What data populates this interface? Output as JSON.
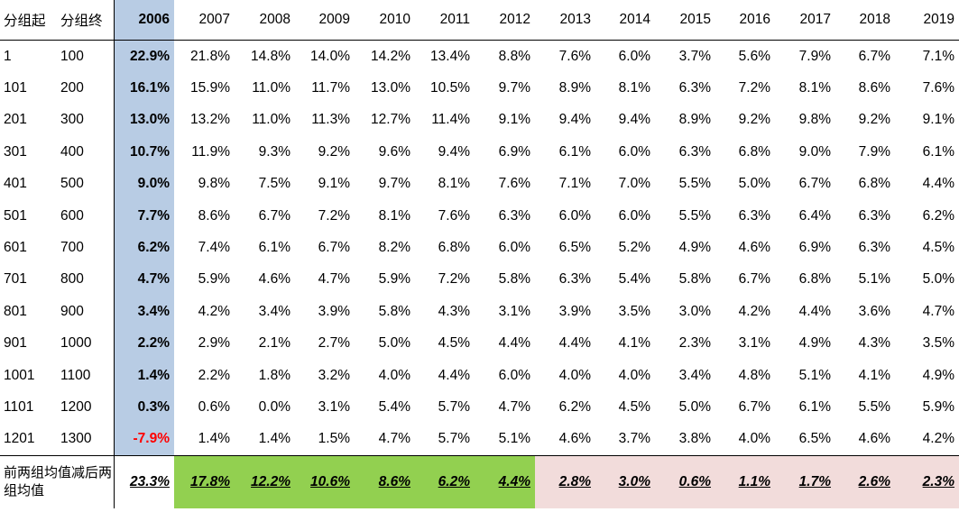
{
  "header": {
    "group_start_label": "分组起",
    "group_end_label": "分组终",
    "years": [
      "2006",
      "2007",
      "2008",
      "2009",
      "2010",
      "2011",
      "2012",
      "2013",
      "2014",
      "2015",
      "2016",
      "2017",
      "2018",
      "2019"
    ]
  },
  "rows": [
    {
      "start": "1",
      "end": "100",
      "values": [
        "22.9%",
        "21.8%",
        "14.8%",
        "14.0%",
        "14.2%",
        "13.4%",
        "8.8%",
        "7.6%",
        "6.0%",
        "3.7%",
        "5.6%",
        "7.9%",
        "6.7%",
        "7.1%"
      ]
    },
    {
      "start": "101",
      "end": "200",
      "values": [
        "16.1%",
        "15.9%",
        "11.0%",
        "11.7%",
        "13.0%",
        "10.5%",
        "9.7%",
        "8.9%",
        "8.1%",
        "6.3%",
        "7.2%",
        "8.1%",
        "8.6%",
        "7.6%"
      ]
    },
    {
      "start": "201",
      "end": "300",
      "values": [
        "13.0%",
        "13.2%",
        "11.0%",
        "11.3%",
        "12.7%",
        "11.4%",
        "9.1%",
        "9.4%",
        "9.4%",
        "8.9%",
        "9.2%",
        "9.8%",
        "9.2%",
        "9.1%"
      ]
    },
    {
      "start": "301",
      "end": "400",
      "values": [
        "10.7%",
        "11.9%",
        "9.3%",
        "9.2%",
        "9.6%",
        "9.4%",
        "6.9%",
        "6.1%",
        "6.0%",
        "6.3%",
        "6.8%",
        "9.0%",
        "7.9%",
        "6.1%"
      ]
    },
    {
      "start": "401",
      "end": "500",
      "values": [
        "9.0%",
        "9.8%",
        "7.5%",
        "9.1%",
        "9.7%",
        "8.1%",
        "7.6%",
        "7.1%",
        "7.0%",
        "5.5%",
        "5.0%",
        "6.7%",
        "6.8%",
        "4.4%"
      ]
    },
    {
      "start": "501",
      "end": "600",
      "values": [
        "7.7%",
        "8.6%",
        "6.7%",
        "7.2%",
        "8.1%",
        "7.6%",
        "6.3%",
        "6.0%",
        "6.0%",
        "5.5%",
        "6.3%",
        "6.4%",
        "6.3%",
        "6.2%"
      ]
    },
    {
      "start": "601",
      "end": "700",
      "values": [
        "6.2%",
        "7.4%",
        "6.1%",
        "6.7%",
        "8.2%",
        "6.8%",
        "6.0%",
        "6.5%",
        "5.2%",
        "4.9%",
        "4.6%",
        "6.9%",
        "6.3%",
        "4.5%"
      ]
    },
    {
      "start": "701",
      "end": "800",
      "values": [
        "4.7%",
        "5.9%",
        "4.6%",
        "4.7%",
        "5.9%",
        "7.2%",
        "5.8%",
        "6.3%",
        "5.4%",
        "5.8%",
        "6.7%",
        "6.8%",
        "5.1%",
        "5.0%"
      ]
    },
    {
      "start": "801",
      "end": "900",
      "values": [
        "3.4%",
        "4.2%",
        "3.4%",
        "3.9%",
        "5.8%",
        "4.3%",
        "3.1%",
        "3.9%",
        "3.5%",
        "3.0%",
        "4.2%",
        "4.4%",
        "3.6%",
        "4.7%"
      ]
    },
    {
      "start": "901",
      "end": "1000",
      "values": [
        "2.2%",
        "2.9%",
        "2.1%",
        "2.7%",
        "5.0%",
        "4.5%",
        "4.4%",
        "4.4%",
        "4.1%",
        "2.3%",
        "3.1%",
        "4.9%",
        "4.3%",
        "3.5%"
      ]
    },
    {
      "start": "1001",
      "end": "1100",
      "values": [
        "1.4%",
        "2.2%",
        "1.8%",
        "3.2%",
        "4.0%",
        "4.4%",
        "6.0%",
        "4.0%",
        "4.0%",
        "3.4%",
        "4.8%",
        "5.1%",
        "4.1%",
        "4.9%"
      ]
    },
    {
      "start": "1101",
      "end": "1200",
      "values": [
        "0.3%",
        "0.6%",
        "0.0%",
        "3.1%",
        "5.4%",
        "5.7%",
        "4.7%",
        "6.2%",
        "4.5%",
        "5.0%",
        "6.7%",
        "6.1%",
        "5.5%",
        "5.9%"
      ]
    },
    {
      "start": "1201",
      "end": "1300",
      "values": [
        "-7.9%",
        "1.4%",
        "1.4%",
        "1.5%",
        "4.7%",
        "5.7%",
        "5.1%",
        "4.6%",
        "3.7%",
        "3.8%",
        "4.0%",
        "6.5%",
        "4.6%",
        "4.2%"
      ]
    }
  ],
  "summary": {
    "label": "前两组均值减后两组均值",
    "values": [
      "23.3%",
      "17.8%",
      "12.2%",
      "10.6%",
      "8.6%",
      "6.2%",
      "4.4%",
      "2.8%",
      "3.0%",
      "0.6%",
      "1.1%",
      "1.7%",
      "2.6%",
      "2.3%"
    ]
  },
  "colors": {
    "highlight_2006": "#b8cce4",
    "summary_green": "#92d050",
    "summary_pink": "#f2dcdb",
    "negative": "#ff0000"
  }
}
